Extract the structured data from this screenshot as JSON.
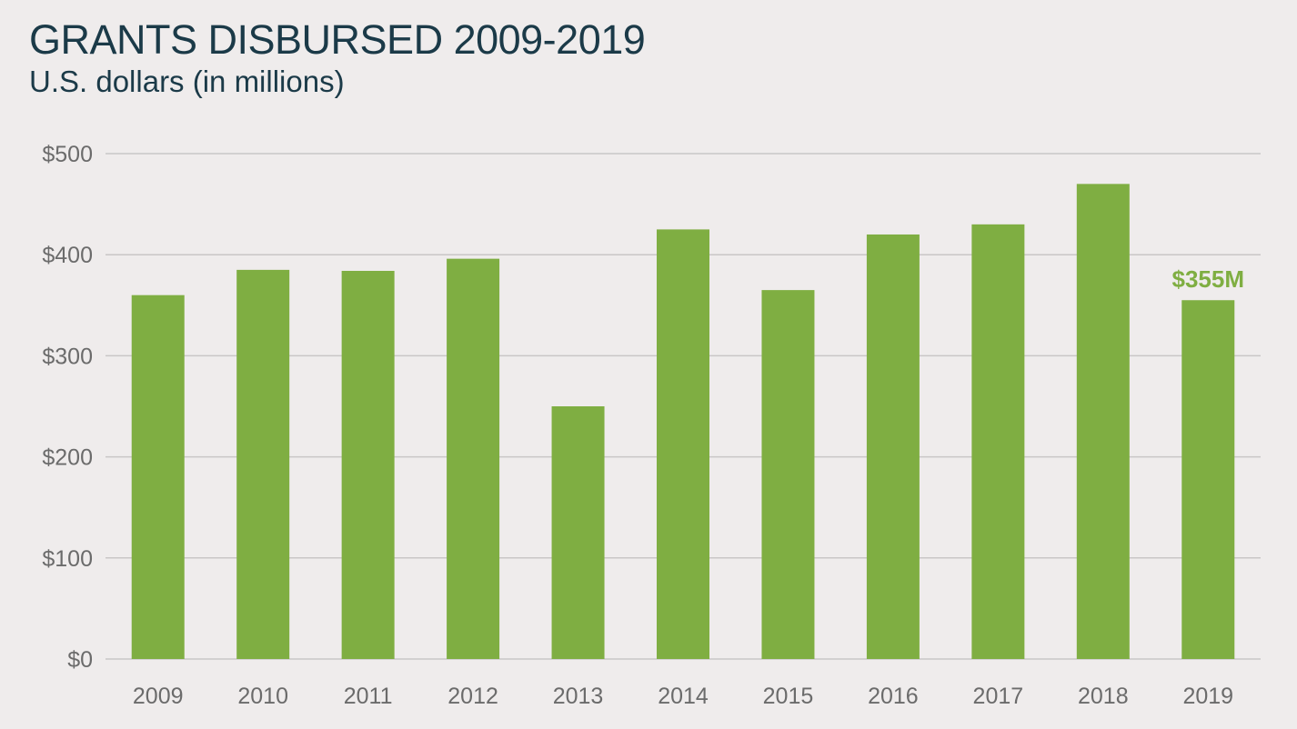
{
  "chart_data": {
    "type": "bar",
    "title": "GRANTS DISBURSED 2009-2019",
    "subtitle": "U.S. dollars (in millions)",
    "xlabel": "",
    "ylabel": "",
    "categories": [
      "2009",
      "2010",
      "2011",
      "2012",
      "2013",
      "2014",
      "2015",
      "2016",
      "2017",
      "2018",
      "2019"
    ],
    "values": [
      360,
      385,
      384,
      396,
      250,
      425,
      365,
      420,
      430,
      470,
      355
    ],
    "ylim": [
      0,
      500
    ],
    "yticks": [
      0,
      100,
      200,
      300,
      400,
      500
    ],
    "ytick_labels": [
      "$0",
      "$100",
      "$200",
      "$300",
      "$400",
      "$500"
    ],
    "grid": true,
    "legend": "none",
    "annotations": [
      {
        "category": "2019",
        "text": "$355M"
      }
    ],
    "colors": {
      "bar": "#7fae42",
      "annotation": "#7fae42",
      "title": "#1b3a48",
      "tick_text": "#6b6b6b",
      "grid": "#c9c6c6",
      "background": "#efecec"
    }
  }
}
